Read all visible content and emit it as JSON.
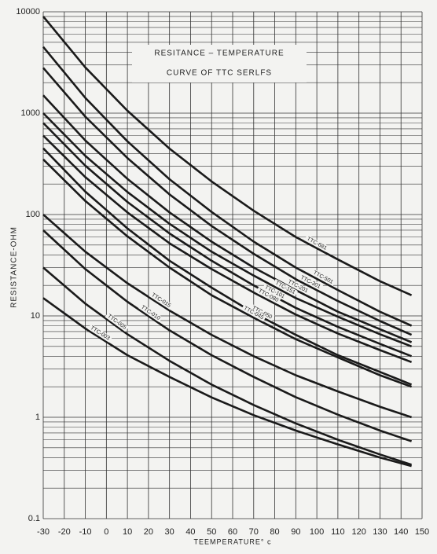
{
  "chart_data": {
    "type": "line",
    "title": "RESITANCE – TEMPERATURE",
    "subtitle": "CURVE OF TTC SERLFS",
    "x_label": "TEEMPERATURE° c",
    "y_label": "RESISTANCE-OHM",
    "x": [
      -30,
      -10,
      10,
      30,
      50,
      70,
      90,
      110,
      130,
      145
    ],
    "series": [
      {
        "name": "TTC-681",
        "color": "#1a1a1a",
        "values": [
          9000,
          2825,
          1057,
          447,
          212,
          109,
          60,
          36,
          22,
          16
        ]
      },
      {
        "name": "TTC-501",
        "color": "#1a1a1a",
        "values": [
          4500,
          1413,
          528,
          223,
          106,
          54,
          30,
          18,
          11,
          8
        ]
      },
      {
        "name": "TTC-301",
        "color": "#1a1a1a",
        "values": [
          2800,
          923,
          361,
          158,
          77,
          41,
          23,
          14,
          8.9,
          6.5
        ]
      },
      {
        "name": "TTC-201",
        "color": "#1a1a1a",
        "values": [
          1500,
          537,
          225,
          105,
          54,
          30,
          18,
          11,
          7.4,
          5.5
        ]
      },
      {
        "name": "TTC-151",
        "color": "#1a1a1a",
        "values": [
          1000,
          379,
          167,
          81,
          43,
          25,
          15,
          9.8,
          6.6,
          5.0
        ]
      },
      {
        "name": "TTC-101",
        "color": "#1a1a1a",
        "values": [
          800,
          303,
          133,
          65,
          35,
          20,
          12,
          7.8,
          5.3,
          4.0
        ]
      },
      {
        "name": "TTC-080",
        "color": "#1a1a1a",
        "values": [
          600,
          234,
          105,
          52,
          29,
          17,
          10.3,
          6.7,
          4.6,
          3.5
        ]
      },
      {
        "name": "TTC-050",
        "color": "#1a1a1a",
        "values": [
          450,
          168,
          73,
          35,
          19,
          10.7,
          6.5,
          4.1,
          2.8,
          2.1
        ]
      },
      {
        "name": "TTC-045",
        "color": "#1a1a1a",
        "values": [
          350,
          136,
          61,
          30,
          16,
          9.6,
          5.9,
          3.9,
          2.6,
          2.0
        ]
      },
      {
        "name": "TTC-015",
        "color": "#1a1a1a",
        "values": [
          100,
          43,
          21,
          11.3,
          6.5,
          4.0,
          2.6,
          1.8,
          1.27,
          1.0
        ]
      },
      {
        "name": "TTC-010",
        "color": "#1a1a1a",
        "values": [
          70,
          29,
          13.8,
          7.2,
          4.1,
          2.5,
          1.58,
          1.06,
          0.74,
          0.58
        ]
      },
      {
        "name": "TTC-005",
        "color": "#1a1a1a",
        "values": [
          30,
          13.2,
          6.6,
          3.6,
          2.1,
          1.32,
          0.87,
          0.6,
          0.43,
          0.34
        ]
      },
      {
        "name": "TTC-003",
        "color": "#1a1a1a",
        "values": [
          15,
          7.5,
          4.1,
          2.5,
          1.57,
          1.05,
          0.74,
          0.54,
          0.4,
          0.33
        ]
      }
    ],
    "xlim": [
      -30,
      150
    ],
    "xticks": [
      -30,
      -20,
      -10,
      0,
      10,
      20,
      30,
      40,
      50,
      60,
      70,
      80,
      90,
      100,
      110,
      120,
      130,
      140,
      150
    ],
    "ylim": [
      0.1,
      10000
    ],
    "yticks": [
      0.1,
      1,
      10,
      100,
      1000,
      10000
    ],
    "y_scale": "log",
    "grid": true,
    "minor_grid": true
  }
}
